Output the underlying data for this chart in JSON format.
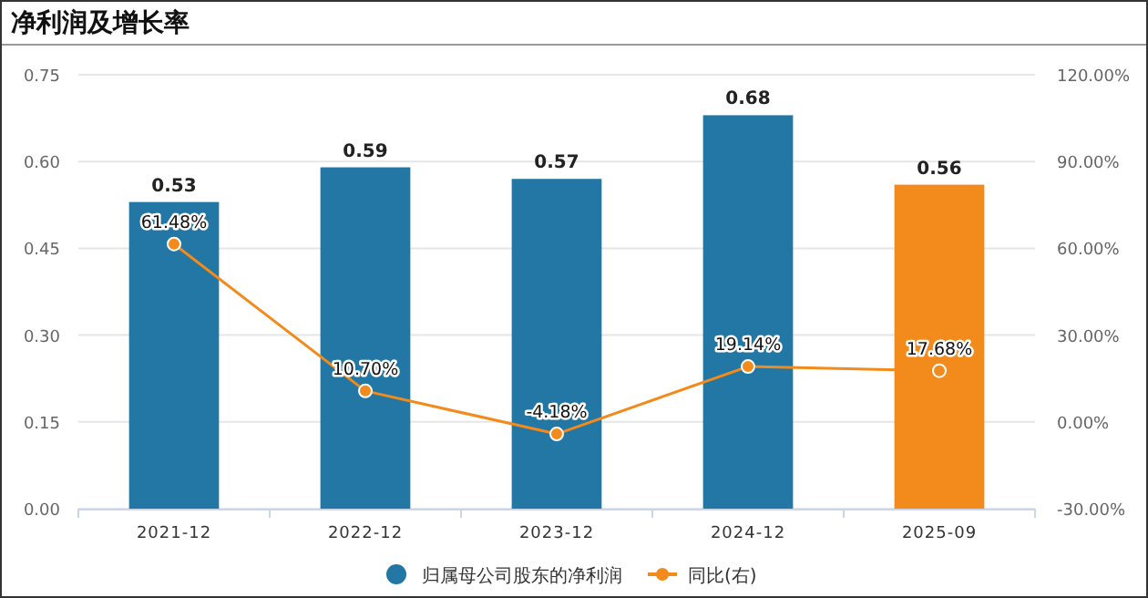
{
  "chart_data": {
    "type": "bar",
    "title": "净利润及增长率",
    "categories": [
      "2021-12",
      "2022-12",
      "2023-12",
      "2024-12",
      "2025-09"
    ],
    "series": [
      {
        "name": "归属母公司股东的净利润",
        "color": "#2377a4",
        "colors": [
          "#2377a4",
          "#2377a4",
          "#2377a4",
          "#2377a4",
          "#f28a1c"
        ],
        "values": [
          0.53,
          0.59,
          0.57,
          0.68,
          0.56
        ]
      },
      {
        "name": "同比(右)",
        "type": "line",
        "axis": "y2",
        "color": "#f28a1c",
        "marker": "circle",
        "values": [
          61.48,
          10.7,
          -4.18,
          19.14,
          17.68
        ],
        "value_labels": [
          "61.48%",
          "10.70%",
          "-4.18%",
          "19.14%",
          "17.68%"
        ]
      }
    ],
    "data_labels": true,
    "ylim": [
      0,
      0.75
    ],
    "yticks": [
      {
        "value": 0,
        "label": "0.00"
      },
      0.15,
      {
        "value": 0.3,
        "label": "0.30"
      },
      0.45,
      {
        "value": 0.6,
        "label": "0.60"
      },
      0.75
    ],
    "y2lim": [
      -30,
      120
    ],
    "y2ticks": [
      {
        "value": -30,
        "label": "-30.00%"
      },
      {
        "value": 0,
        "label": "0.00%"
      },
      {
        "value": 30,
        "label": "30.00%"
      },
      {
        "value": 60,
        "label": "60.00%"
      },
      {
        "value": 90,
        "label": "90.00%"
      },
      {
        "value": 120,
        "label": "120.00%"
      }
    ],
    "grid": "y",
    "legend": "bottom"
  }
}
